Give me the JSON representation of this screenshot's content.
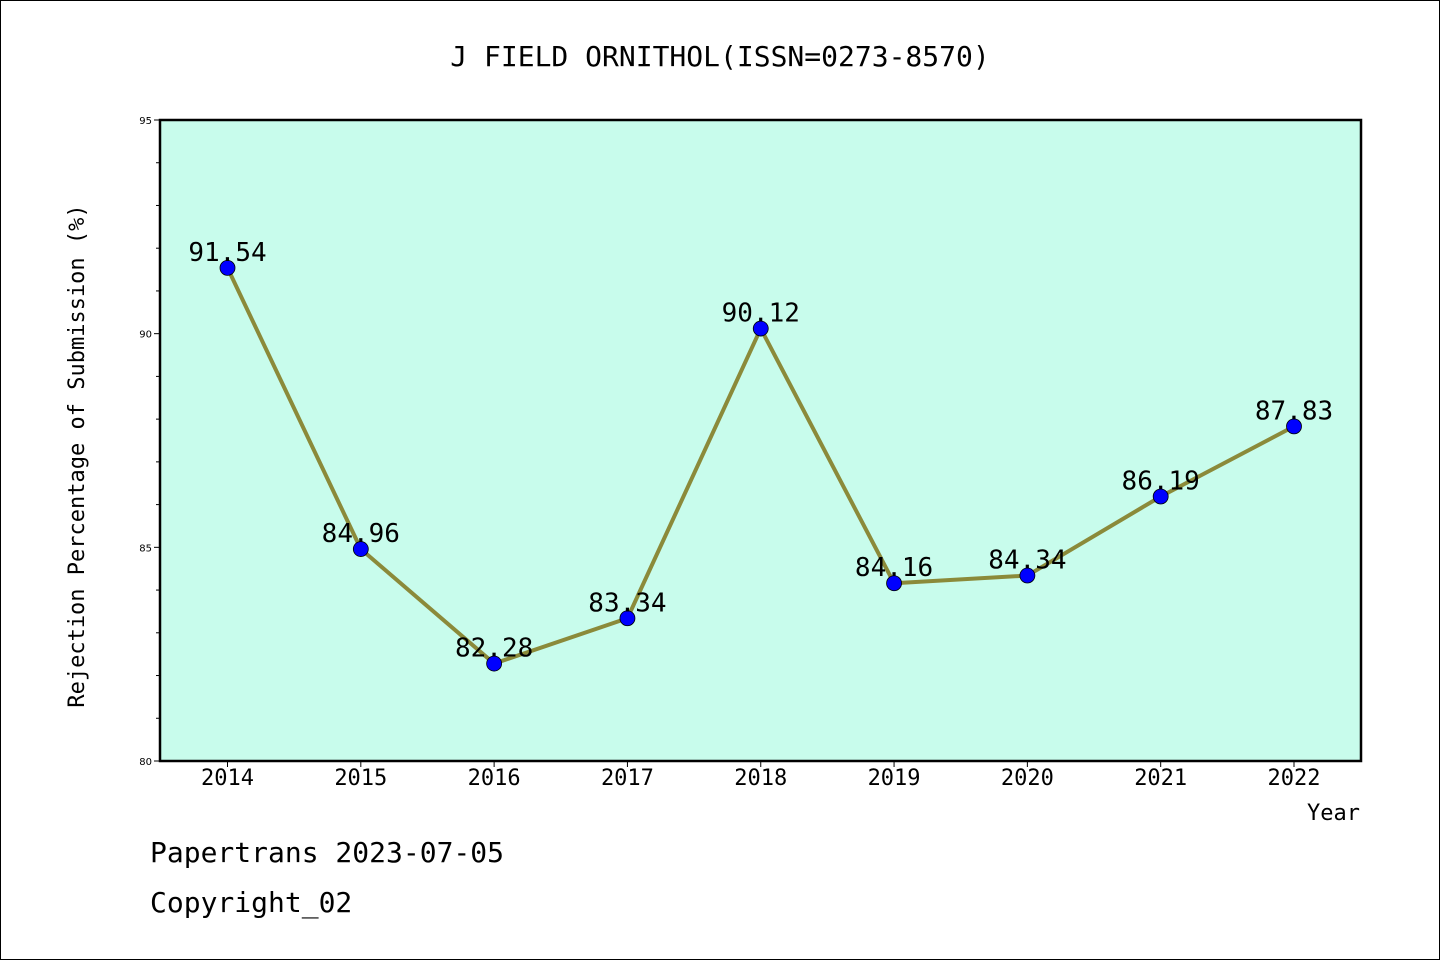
{
  "chart_data": {
    "type": "line",
    "title": "J FIELD ORNITHOL(ISSN=0273-8570)",
    "xlabel": "Year",
    "ylabel": "Rejection Percentage of Submission (%)",
    "categories": [
      "2014",
      "2015",
      "2016",
      "2017",
      "2018",
      "2019",
      "2020",
      "2021",
      "2022"
    ],
    "values": [
      91.54,
      84.96,
      82.28,
      83.34,
      90.12,
      84.16,
      84.34,
      86.19,
      87.83
    ],
    "data_labels": [
      "91.54",
      "84.96",
      "82.28",
      "83.34",
      "90.12",
      "84.16",
      "84.34",
      "86.19",
      "87.83"
    ],
    "ylim": [
      80,
      95
    ],
    "yticks": [
      "80",
      "85",
      "90",
      "95"
    ],
    "grid": false,
    "colors": {
      "plot_background": "#c8fcec",
      "line": "#8b8a3a",
      "marker": "#0000ff"
    }
  },
  "footer": {
    "line1": "Papertrans 2023-07-05",
    "line2": "Copyright_02"
  }
}
